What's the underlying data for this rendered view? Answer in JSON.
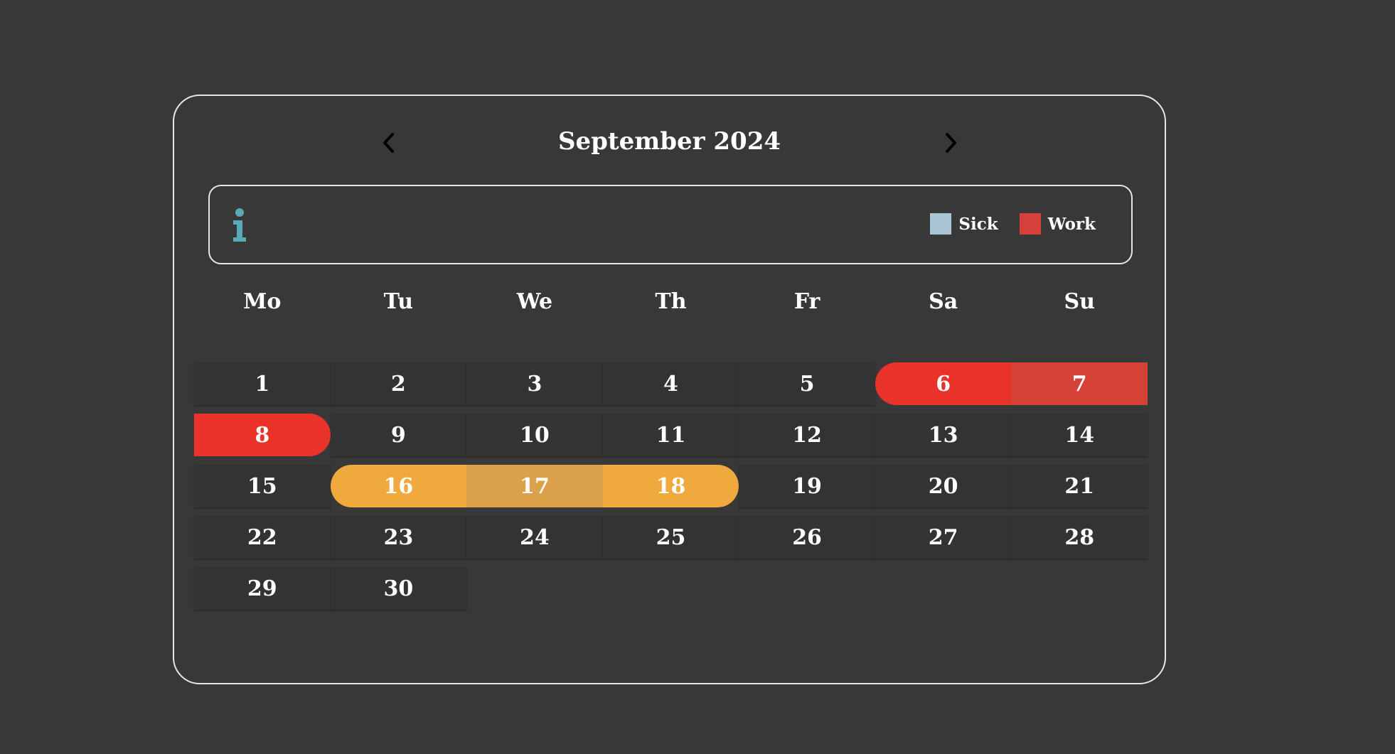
{
  "calendar": {
    "title": "September 2024",
    "prev_icon": "chevron-left-icon",
    "next_icon": "chevron-right-icon"
  },
  "info": {
    "icon": "info-icon",
    "icon_color": "#5aa9b6"
  },
  "legend": [
    {
      "label": "Sick",
      "color": "#a9c4d3"
    },
    {
      "label": "Work",
      "color": "#d8403b"
    }
  ],
  "weekdays": [
    "Mo",
    "Tu",
    "We",
    "Th",
    "Fr",
    "Sa",
    "Su"
  ],
  "month": {
    "days_in_month": 30,
    "first_weekday_index": 0
  },
  "colors": {
    "background": "#383838",
    "day_cell": "#333333",
    "work_range": "#e9332a",
    "work_range_mid": "#d64237",
    "orange_range": "#f0a93c",
    "orange_range_mid": "#dba14a"
  },
  "ranges": [
    {
      "type": "work",
      "start": 6,
      "end": 8
    },
    {
      "type": "orange",
      "start": 16,
      "end": 18
    }
  ]
}
